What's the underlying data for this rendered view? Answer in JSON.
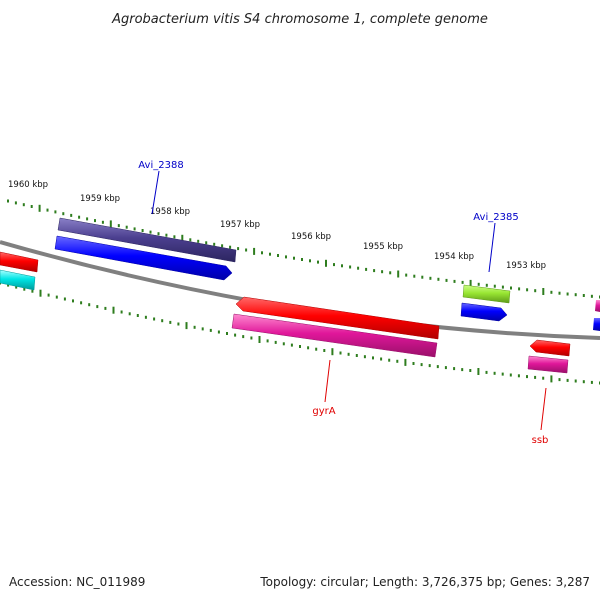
{
  "title": "Agrobacterium vitis S4 chromosome 1, complete genome",
  "footer": {
    "accession": "Accession: NC_011989",
    "summary": "Topology: circular; Length: 3,726,375 bp; Genes: 3,287"
  },
  "ticks": [
    {
      "label": "1960 kbp"
    },
    {
      "label": "1959 kbp"
    },
    {
      "label": "1958 kbp"
    },
    {
      "label": "1957 kbp"
    },
    {
      "label": "1956 kbp"
    },
    {
      "label": "1955 kbp"
    },
    {
      "label": "1954 kbp"
    },
    {
      "label": "1953 kbp"
    }
  ],
  "gene_labels": {
    "avi_2388": "Avi_2388",
    "avi_2385": "Avi_2385",
    "gyra": "gyrA",
    "ssb": "ssb"
  },
  "colors": {
    "backbone": "#808080",
    "tick": "#2e7d1e",
    "label_blue": "#0000c8",
    "label_red": "#e00000",
    "red": "#ff0000",
    "blue": "#0000ff",
    "slate": "#4b3f8f",
    "pink": "#e0179a",
    "cyan": "#00e5e5",
    "lime": "#99e633"
  }
}
